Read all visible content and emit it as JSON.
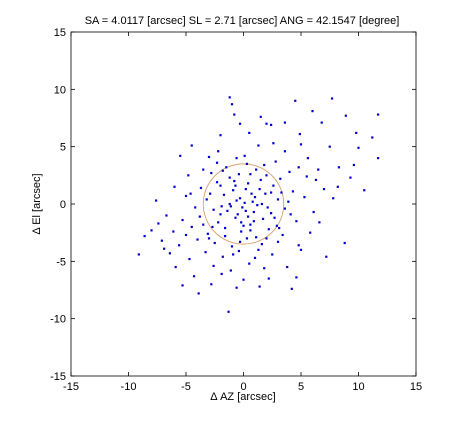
{
  "chart_data": {
    "type": "scatter",
    "title": "SA = 4.0117 [arcsec]  SL = 2.71 [arcsec]  ANG = 42.1547 [degree]",
    "xlabel": "Δ AZ [arcsec]",
    "ylabel": "Δ El [arcsec]",
    "xlim": [
      -15,
      15
    ],
    "ylim": [
      -15,
      15
    ],
    "xticks": [
      -15,
      -10,
      -5,
      0,
      5,
      10,
      15
    ],
    "yticks": [
      -15,
      -10,
      -5,
      0,
      5,
      10,
      15
    ],
    "grid": false,
    "colors": {
      "points": "#0000cc",
      "ellipse": "#d9a070",
      "axes": "#000000"
    },
    "ellipse": {
      "center": [
        0,
        0
      ],
      "radius_x": 3.5,
      "radius_y": 3.5
    },
    "series": [
      {
        "points": [
          [
            -1.2,
            9.3
          ],
          [
            -1.0,
            8.7
          ],
          [
            1.5,
            7.6
          ],
          [
            4.5,
            9.0
          ],
          [
            7.7,
            9.2
          ],
          [
            11.7,
            7.8
          ],
          [
            -0.8,
            7.8
          ],
          [
            -0.3,
            7.0
          ],
          [
            2.0,
            7.0
          ],
          [
            2.4,
            6.9
          ],
          [
            3.6,
            7.1
          ],
          [
            6.8,
            7.1
          ],
          [
            9.8,
            6.2
          ],
          [
            11.2,
            5.8
          ],
          [
            -2.0,
            6.0
          ],
          [
            0.5,
            6.2
          ],
          [
            1.3,
            5.1
          ],
          [
            2.6,
            5.3
          ],
          [
            5.0,
            5.2
          ],
          [
            7.5,
            5.0
          ],
          [
            10.0,
            4.9
          ],
          [
            11.7,
            4.0
          ],
          [
            -5.5,
            4.2
          ],
          [
            -3.0,
            4.1
          ],
          [
            -0.6,
            4.0
          ],
          [
            0.1,
            4.2
          ],
          [
            -2.3,
            3.6
          ],
          [
            -1.5,
            3.2
          ],
          [
            0.3,
            3.5
          ],
          [
            1.8,
            3.4
          ],
          [
            2.8,
            3.7
          ],
          [
            4.8,
            3.2
          ],
          [
            6.5,
            3.0
          ],
          [
            8.3,
            3.2
          ],
          [
            9.6,
            3.4
          ],
          [
            -4.8,
            2.5
          ],
          [
            -2.8,
            2.7
          ],
          [
            -1.2,
            2.3
          ],
          [
            0.6,
            2.6
          ],
          [
            2.0,
            2.5
          ],
          [
            3.2,
            2.2
          ],
          [
            4.0,
            2.8
          ],
          [
            5.5,
            2.4
          ],
          [
            -6.0,
            1.5
          ],
          [
            -3.7,
            1.4
          ],
          [
            -2.0,
            1.6
          ],
          [
            -0.9,
            1.2
          ],
          [
            0.4,
            1.8
          ],
          [
            1.4,
            1.3
          ],
          [
            2.6,
            1.6
          ],
          [
            4.3,
            1.1
          ],
          [
            7.0,
            1.3
          ],
          [
            8.2,
            1.5
          ],
          [
            -7.6,
            0.3
          ],
          [
            -5.0,
            0.7
          ],
          [
            -3.2,
            0.4
          ],
          [
            -1.7,
            0.8
          ],
          [
            -0.3,
            0.5
          ],
          [
            0.8,
            0.2
          ],
          [
            1.9,
            0.9
          ],
          [
            3.0,
            0.4
          ],
          [
            5.3,
            0.6
          ],
          [
            -4.2,
            -0.3
          ],
          [
            -2.6,
            -0.5
          ],
          [
            -1.1,
            -0.2
          ],
          [
            0.2,
            -0.6
          ],
          [
            1.2,
            -0.1
          ],
          [
            2.4,
            -0.8
          ],
          [
            3.6,
            -0.4
          ],
          [
            6.1,
            -0.7
          ],
          [
            -6.7,
            -1.0
          ],
          [
            -5.3,
            -1.4
          ],
          [
            -3.8,
            -1.1
          ],
          [
            -2.2,
            -1.6
          ],
          [
            -0.7,
            -1.2
          ],
          [
            0.6,
            -1.8
          ],
          [
            1.7,
            -1.3
          ],
          [
            2.9,
            -1.9
          ],
          [
            4.6,
            -1.5
          ],
          [
            -8.0,
            -2.3
          ],
          [
            -6.1,
            -2.4
          ],
          [
            -4.5,
            -2.0
          ],
          [
            -3.1,
            -2.6
          ],
          [
            -1.6,
            -2.1
          ],
          [
            -0.2,
            -2.4
          ],
          [
            1.1,
            -2.9
          ],
          [
            2.2,
            -2.2
          ],
          [
            3.4,
            -2.7
          ],
          [
            5.8,
            -2.5
          ],
          [
            -7.1,
            -3.2
          ],
          [
            -5.6,
            -3.6
          ],
          [
            -4.0,
            -3.1
          ],
          [
            -2.5,
            -3.4
          ],
          [
            -1.0,
            -3.7
          ],
          [
            0.3,
            -3.0
          ],
          [
            1.6,
            -3.5
          ],
          [
            3.0,
            -3.3
          ],
          [
            4.8,
            -3.6
          ],
          [
            8.8,
            -3.4
          ],
          [
            -9.1,
            -4.4
          ],
          [
            -6.4,
            -4.3
          ],
          [
            -4.7,
            -4.8
          ],
          [
            -3.3,
            -4.2
          ],
          [
            -1.8,
            -4.6
          ],
          [
            -0.4,
            -4.1
          ],
          [
            1.0,
            -4.7
          ],
          [
            2.5,
            -4.4
          ],
          [
            -5.9,
            -5.5
          ],
          [
            -2.6,
            -5.4
          ],
          [
            -1.1,
            -5.8
          ],
          [
            0.5,
            -5.2
          ],
          [
            1.8,
            -5.6
          ],
          [
            3.8,
            -5.5
          ],
          [
            7.2,
            -4.6
          ],
          [
            -4.3,
            -6.3
          ],
          [
            -1.9,
            -6.1
          ],
          [
            0.0,
            -6.6
          ],
          [
            2.2,
            -6.5
          ],
          [
            4.6,
            -6.4
          ],
          [
            -5.3,
            -7.1
          ],
          [
            -2.8,
            -7.0
          ],
          [
            -0.6,
            -7.3
          ],
          [
            1.4,
            -7.2
          ],
          [
            4.2,
            -7.4
          ],
          [
            -3.9,
            -7.8
          ],
          [
            -1.3,
            -9.4
          ],
          [
            -0.5,
            -0.9
          ],
          [
            0.1,
            0.1
          ],
          [
            -0.2,
            -1.6
          ],
          [
            0.9,
            -0.7
          ],
          [
            -1.4,
            -0.6
          ],
          [
            0.7,
            0.9
          ],
          [
            -0.8,
            2.0
          ],
          [
            1.5,
            2.1
          ],
          [
            -2.0,
            -0.9
          ],
          [
            2.1,
            -0.3
          ],
          [
            -0.3,
            -3.3
          ],
          [
            1.3,
            -4.0
          ],
          [
            -2.9,
            0.9
          ],
          [
            3.3,
            1.0
          ],
          [
            -1.6,
            -2.8
          ],
          [
            0.4,
            -1.1
          ],
          [
            -0.6,
            0.3
          ],
          [
            1.0,
            0.6
          ],
          [
            -1.2,
            0.0
          ],
          [
            0.2,
            1.3
          ],
          [
            -0.1,
            -0.3
          ],
          [
            0.6,
            -2.3
          ],
          [
            -2.3,
            1.9
          ],
          [
            2.7,
            -1.2
          ],
          [
            -3.5,
            -1.8
          ],
          [
            3.9,
            0.2
          ],
          [
            -1.8,
            2.9
          ],
          [
            1.1,
            3.0
          ],
          [
            -0.9,
            -4.4
          ],
          [
            2.0,
            -3.0
          ],
          [
            -4.6,
            0.9
          ],
          [
            4.1,
            -0.9
          ],
          [
            -2.7,
            -2.0
          ],
          [
            0.9,
            -1.5
          ],
          [
            -0.4,
            2.6
          ],
          [
            1.6,
            0.0
          ],
          [
            -1.9,
            -0.2
          ],
          [
            0.0,
            -1.9
          ],
          [
            -0.7,
            1.6
          ],
          [
            2.4,
            1.0
          ],
          [
            -3.0,
            -3.0
          ],
          [
            3.1,
            -2.1
          ],
          [
            5.6,
            4.0
          ],
          [
            6.3,
            2.1
          ],
          [
            7.8,
            0.5
          ],
          [
            9.3,
            2.3
          ],
          [
            10.5,
            1.2
          ],
          [
            6.6,
            -1.6
          ],
          [
            5.0,
            -4.0
          ],
          [
            3.6,
            4.6
          ],
          [
            4.9,
            6.1
          ],
          [
            6.0,
            8.1
          ],
          [
            8.9,
            7.7
          ],
          [
            -4.5,
            5.1
          ],
          [
            -3.5,
            3.0
          ],
          [
            -6.9,
            -3.9
          ],
          [
            -7.4,
            -1.7
          ],
          [
            -5.0,
            -2.7
          ],
          [
            -8.6,
            -2.8
          ],
          [
            -2.2,
            4.6
          ]
        ]
      }
    ]
  }
}
